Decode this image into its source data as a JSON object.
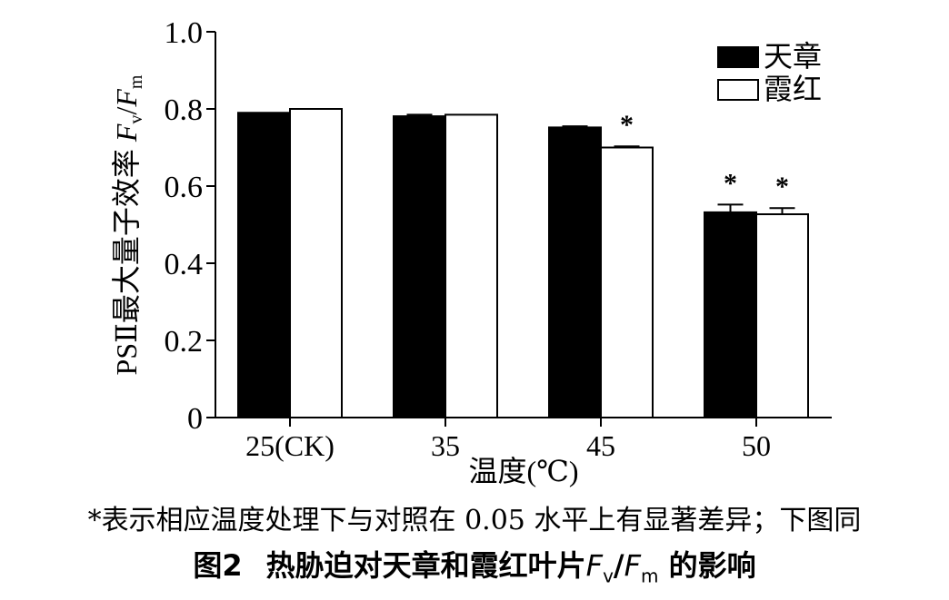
{
  "chart_data": {
    "type": "bar",
    "categories": [
      "25(CK)",
      "35",
      "45",
      "50"
    ],
    "series": [
      {
        "name": "天章",
        "values": [
          0.79,
          0.781,
          0.752,
          0.532
        ],
        "errors": [
          0.0,
          0.004,
          0.003,
          0.02
        ],
        "color": "#000000"
      },
      {
        "name": "霞红",
        "values": [
          0.8,
          0.785,
          0.7,
          0.527
        ],
        "errors": [
          0.0,
          0.0,
          0.003,
          0.016
        ],
        "color": "#ffffff"
      }
    ],
    "significance": [
      [
        false,
        false
      ],
      [
        false,
        false
      ],
      [
        false,
        true
      ],
      [
        true,
        true
      ]
    ],
    "sig_mark": "*",
    "ylim": [
      0,
      1.0
    ],
    "yticks": [
      0,
      0.2,
      0.4,
      0.6,
      0.8,
      1.0
    ],
    "ytick_labels": [
      "0",
      "0.2",
      "0.4",
      "0.6",
      "0.8",
      "1.0"
    ],
    "xlabel": "温度(℃)",
    "ylabel": {
      "prefix": "PSⅡ最大量子效率 ",
      "f1": "F",
      "sub1": "v",
      "slash": "/",
      "f2": "F",
      "sub2": "m"
    },
    "legend_position": "top-right"
  },
  "note": "*表示相应温度处理下与对照在 0.05 水平上有显著差异；下图同",
  "caption": {
    "number": "图2",
    "text": "热胁迫对天章和霞红叶片",
    "f1": "F",
    "sub1": "v",
    "slash": "/",
    "f2": "F",
    "sub2": "m",
    "suffix": " 的影响"
  }
}
